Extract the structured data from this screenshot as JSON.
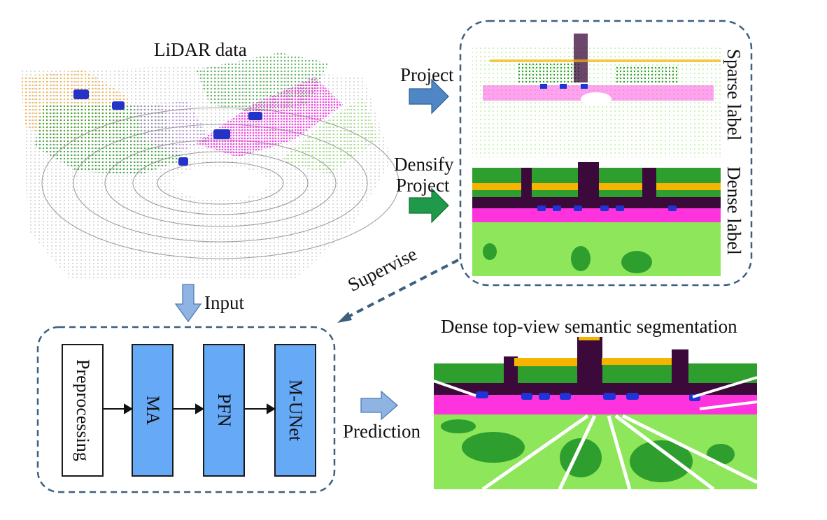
{
  "lidar": {
    "title": "LiDAR data"
  },
  "arrows": {
    "project": "Project",
    "densify": "Densify",
    "densify_project": "Project",
    "input": "Input",
    "supervise": "Supervise",
    "prediction": "Prediction"
  },
  "labels_panel": {
    "sparse": "Sparse label",
    "dense": "Dense label"
  },
  "network": {
    "blocks": [
      "Preprocessing",
      "MA",
      "PFN",
      "M-UNet"
    ]
  },
  "output": {
    "title": "Dense top-view semantic segmentation"
  },
  "colors": {
    "road": "#ff33dd",
    "vegetation": "#8ee65a",
    "tree": "#2e9e2e",
    "building": "#3b0a3b",
    "car": "#1f33d6",
    "fence": "#f5b400",
    "block_fill": "#66aaf7",
    "arrow_blue": "#4f86c6",
    "arrow_green": "#1f9a4a",
    "dash_border": "#3d607f"
  }
}
